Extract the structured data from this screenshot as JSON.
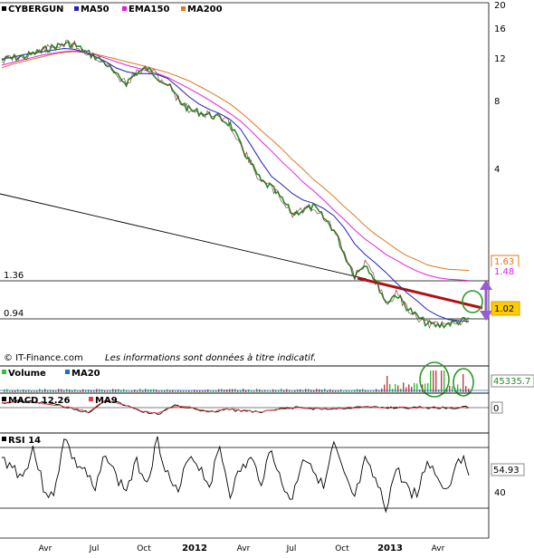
{
  "legend": {
    "main": [
      {
        "name": "CYBERGUN",
        "color": "#000000"
      },
      {
        "name": "MA50",
        "color": "#1f1fbf"
      },
      {
        "name": "EMA150",
        "color": "#e020e0"
      },
      {
        "name": "MA200",
        "color": "#e07820"
      }
    ],
    "volume": [
      {
        "name": "Volume",
        "color": "#3cb83c"
      },
      {
        "name": "MA20",
        "color": "#1f6fbf"
      }
    ],
    "macd": [
      {
        "name": "MACD 12.26",
        "color": "#000000"
      },
      {
        "name": "MA9",
        "color": "#e04040"
      }
    ],
    "rsi": [
      {
        "name": "RSI 14",
        "color": "#000000"
      }
    ]
  },
  "footer": {
    "source": "© IT-Finance.com",
    "disclaimer": "Les informations sont données à titre indicatif."
  },
  "badges": {
    "ma200": "1.63",
    "ema150": "1.48",
    "price": "1.02",
    "volume": "45335.7",
    "macd": "0",
    "rsi": "54.93"
  },
  "hlines": {
    "upper": "1.36",
    "lower": "0.94"
  },
  "chart_data": {
    "type": "line",
    "yscale": "log",
    "x_ticks": [
      "Avr",
      "Jul",
      "Oct",
      "2012",
      "Avr",
      "Jul",
      "Oct",
      "2013",
      "Avr"
    ],
    "y_ticks": [
      "20",
      "16",
      "12",
      "8",
      "4"
    ],
    "rsi_ticks": [
      "40"
    ],
    "price": [
      12.2,
      12.4,
      12.6,
      12.9,
      13.4,
      13.8,
      14.2,
      14.1,
      13.2,
      12.6,
      11.8,
      10.5,
      9.8,
      10.8,
      11.2,
      10.4,
      9.6,
      8.4,
      7.6,
      7.4,
      7.2,
      7.0,
      6.6,
      5.4,
      4.5,
      3.8,
      3.6,
      3.2,
      2.8,
      2.9,
      3.0,
      2.7,
      2.4,
      1.9,
      1.55,
      1.75,
      1.48,
      1.2,
      1.3,
      1.15,
      1.05,
      0.98,
      0.96,
      0.98,
      1.0,
      1.02
    ],
    "ma50": [
      12.3,
      12.5,
      12.8,
      13.0,
      13.2,
      13.4,
      13.6,
      13.5,
      13.1,
      12.6,
      12.0,
      11.3,
      10.9,
      10.7,
      10.7,
      10.6,
      10.2,
      9.4,
      8.6,
      8.0,
      7.6,
      7.3,
      6.9,
      6.3,
      5.4,
      4.6,
      4.0,
      3.7,
      3.4,
      3.2,
      3.1,
      2.95,
      2.75,
      2.45,
      2.1,
      1.9,
      1.75,
      1.6,
      1.45,
      1.32,
      1.22,
      1.12,
      1.06,
      1.02,
      1.01,
      1.0
    ],
    "ema150": [
      11.6,
      11.9,
      12.2,
      12.5,
      12.8,
      13.0,
      13.2,
      13.3,
      13.1,
      12.8,
      12.4,
      12.0,
      11.6,
      11.3,
      11.0,
      10.7,
      10.3,
      9.8,
      9.3,
      8.8,
      8.3,
      7.8,
      7.3,
      6.8,
      6.2,
      5.6,
      5.1,
      4.6,
      4.2,
      3.8,
      3.5,
      3.2,
      2.9,
      2.65,
      2.4,
      2.2,
      2.05,
      1.9,
      1.8,
      1.7,
      1.62,
      1.56,
      1.52,
      1.5,
      1.49,
      1.48
    ],
    "ma200": [
      11.3,
      11.7,
      12.0,
      12.3,
      12.6,
      12.9,
      13.1,
      13.2,
      13.1,
      12.9,
      12.6,
      12.3,
      12.0,
      11.7,
      11.4,
      11.1,
      10.8,
      10.4,
      10.0,
      9.5,
      9.0,
      8.5,
      8.0,
      7.4,
      6.8,
      6.2,
      5.7,
      5.2,
      4.7,
      4.3,
      3.9,
      3.6,
      3.3,
      3.0,
      2.75,
      2.5,
      2.3,
      2.15,
      2.0,
      1.88,
      1.8,
      1.72,
      1.68,
      1.65,
      1.64,
      1.63
    ],
    "rsi": [
      62,
      58,
      50,
      70,
      44,
      36,
      78,
      60,
      55,
      40,
      68,
      50,
      42,
      60,
      48,
      75,
      52,
      38,
      66,
      58,
      45,
      70,
      40,
      55,
      62,
      48,
      70,
      44,
      36,
      64,
      58,
      42,
      72,
      50,
      36,
      60,
      48,
      30,
      56,
      44,
      38,
      62,
      50,
      42,
      66,
      55
    ],
    "macd": [
      0.3,
      0.4,
      0.35,
      0.2,
      0.0,
      -0.3,
      0.5,
      0.2,
      -0.2,
      -0.4,
      0.1,
      0.0,
      -0.3,
      -0.1,
      -0.2,
      -0.3,
      -0.1,
      0.0,
      -0.05,
      -0.1,
      0.0,
      0.02,
      0.0,
      0.01,
      0.0,
      0.0,
      0.0,
      0.0
    ]
  }
}
